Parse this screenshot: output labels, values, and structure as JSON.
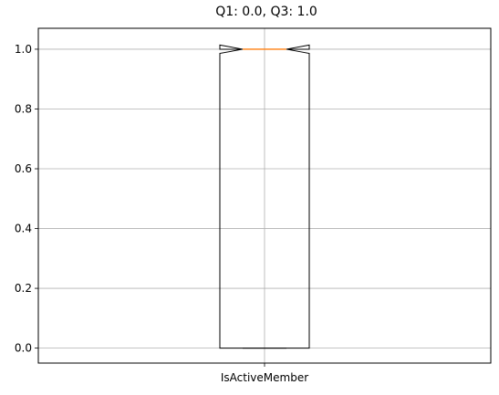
{
  "chart_data": {
    "type": "box",
    "title": "Q1: 0.0, Q3: 1.0",
    "categories": [
      "IsActiveMember"
    ],
    "notched": true,
    "boxes": [
      {
        "category": "IsActiveMember",
        "min": 0.0,
        "q1": 0.0,
        "median": 1.0,
        "q3": 1.0,
        "max": 1.0,
        "notch_low": 0.986,
        "notch_high": 1.014
      }
    ],
    "yticks": [
      "0.0",
      "0.2",
      "0.4",
      "0.6",
      "0.8",
      "1.0"
    ],
    "ytick_values": [
      0.0,
      0.2,
      0.4,
      0.6,
      0.8,
      1.0
    ],
    "ylim": [
      -0.05,
      1.07
    ],
    "grid": true,
    "xlabel": "",
    "ylabel": "",
    "colors": {
      "box": "#000000",
      "median": "#ff7f0e",
      "grid": "#b0b0b0"
    }
  }
}
